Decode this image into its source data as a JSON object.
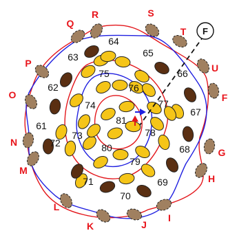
{
  "diagram": {
    "cell_numbers": [
      "61",
      "62",
      "63",
      "64",
      "65",
      "66",
      "67",
      "68",
      "69",
      "70",
      "71",
      "72",
      "73",
      "74",
      "75",
      "76",
      "77",
      "78",
      "79",
      "80",
      "81"
    ],
    "outer_letters": [
      "R",
      "S",
      "T",
      "U",
      "F",
      "G",
      "H",
      "I",
      "J",
      "K",
      "L",
      "M",
      "N",
      "O",
      "P",
      "Q"
    ],
    "marker_label": "F",
    "colors": {
      "red_line": "#e3161b",
      "blue_line": "#1f1fe0",
      "yellow_bead": "#f5c518",
      "dark_bead": "#5a2f12",
      "gray_bead": "#a08060",
      "letter": "#e3161b"
    }
  }
}
